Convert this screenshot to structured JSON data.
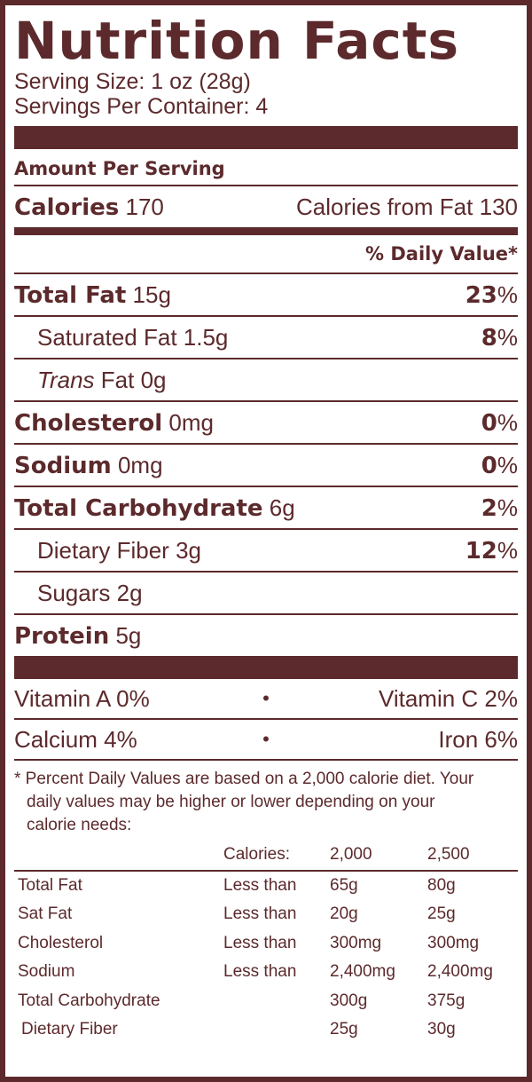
{
  "title": "Nutrition Facts",
  "serving_size": "Serving Size: 1 oz (28g)",
  "servings_per_container": "Servings Per Container: 4",
  "amount_per_serving": "Amount Per Serving",
  "calories": {
    "label": "Calories",
    "value": "170",
    "from_fat_label": "Calories from Fat",
    "from_fat_value": "130"
  },
  "daily_value_header": "% Daily Value*",
  "nutrients": [
    {
      "name": "Total Fat",
      "amount": "15g",
      "pct": "23",
      "sign": "%"
    },
    {
      "name": "Saturated Fat",
      "amount": "1.5g",
      "pct": "8",
      "sign": "%"
    },
    {
      "name_italic": "Trans",
      "name": "Fat",
      "amount": "0g"
    },
    {
      "name": "Cholesterol",
      "amount": "0mg",
      "pct": "0",
      "sign": "%"
    },
    {
      "name": "Sodium",
      "amount": "0mg",
      "pct": "0",
      "sign": "%"
    },
    {
      "name": "Total Carbohydrate",
      "amount": "6g",
      "pct": "2",
      "sign": "%"
    },
    {
      "name": "Dietary Fiber",
      "amount": "3g",
      "pct": "12",
      "sign": "%"
    },
    {
      "name": "Sugars",
      "amount": "2g"
    },
    {
      "name": "Protein",
      "amount": "5g"
    }
  ],
  "vitamins": [
    {
      "left": "Vitamin A 0%",
      "dot": "•",
      "right": "Vitamin C 2%"
    },
    {
      "left": "Calcium 4%",
      "dot": "•",
      "right": "Iron 6%"
    }
  ],
  "footnote": {
    "line1": "* Percent Daily Values are based on a 2,000 calorie diet. Your",
    "line2": "daily values may be higher or lower depending on your",
    "line3": "calorie needs:"
  },
  "reference_table": {
    "header": [
      "",
      "Calories:",
      "2,000",
      "2,500"
    ],
    "rows": [
      [
        "Total Fat",
        "Less than",
        "65g",
        "80g"
      ],
      [
        "Sat Fat",
        "Less than",
        "20g",
        "25g"
      ],
      [
        "Cholesterol",
        "Less than",
        "300mg",
        "300mg"
      ],
      [
        "Sodium",
        "Less than",
        "2,400mg",
        "2,400mg"
      ],
      [
        "Total Carbohydrate",
        "",
        "300g",
        "375g"
      ],
      [
        "Dietary Fiber",
        "",
        "25g",
        "30g"
      ]
    ]
  },
  "colors": {
    "ink": "#5c2a2c",
    "background": "#ffffff"
  }
}
